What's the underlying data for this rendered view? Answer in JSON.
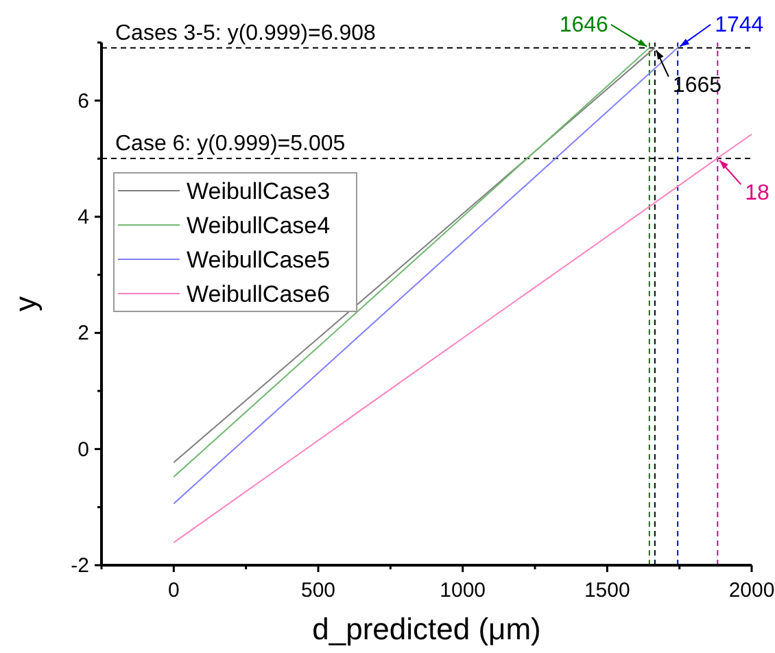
{
  "chart_data": {
    "type": "line",
    "xlabel": "d_predicted (μm)",
    "ylabel": "y",
    "xlim": [
      -250,
      2000
    ],
    "ylim": [
      -2,
      7
    ],
    "xticks": [
      {
        "value": -250,
        "label": null
      },
      0,
      {
        "value": 250,
        "label": null
      },
      500,
      {
        "value": 750,
        "label": null
      },
      1000,
      {
        "value": 1250,
        "label": null
      },
      1500,
      {
        "value": 1750,
        "label": null
      },
      2000
    ],
    "yticks": [
      -2,
      {
        "value": -1,
        "label": null
      },
      0,
      {
        "value": 1,
        "label": null
      },
      2,
      {
        "value": 3,
        "label": null
      },
      4,
      {
        "value": 5,
        "label": null
      },
      6,
      {
        "value": 7,
        "label": null
      }
    ],
    "legend": "top left",
    "grid": false,
    "line_style": "solid",
    "marker": "none",
    "series": [
      {
        "name": "WeibullCase3",
        "color": "#808080",
        "x": [
          0,
          500,
          1000,
          1500,
          1665
        ],
        "values": [
          -0.23,
          1.91,
          4.05,
          6.2,
          6.91
        ]
      },
      {
        "name": "WeibullCase4",
        "color": "#70b870",
        "x": [
          0,
          500,
          1000,
          1500,
          1646
        ],
        "values": [
          -0.48,
          1.76,
          4.0,
          6.25,
          6.91
        ]
      },
      {
        "name": "WeibullCase5",
        "color": "#8080ff",
        "x": [
          0,
          500,
          1000,
          1500,
          1744
        ],
        "values": [
          -0.94,
          1.31,
          3.56,
          5.81,
          6.91
        ]
      },
      {
        "name": "WeibullCase6",
        "color": "#ff80c0",
        "x": [
          0,
          500,
          1000,
          1500,
          1882,
          2000
        ],
        "values": [
          -1.61,
          0.15,
          1.91,
          3.66,
          5.01,
          5.42
        ]
      }
    ],
    "ref_lines": [
      {
        "axis": "y",
        "value": 6.908,
        "color": "#000000",
        "line_style": "dashed"
      },
      {
        "axis": "y",
        "value": 5.005,
        "color": "#000000",
        "line_style": "dashed"
      },
      {
        "axis": "x",
        "value": 1646,
        "color": "#008000",
        "line_style": "dashed"
      },
      {
        "axis": "x",
        "value": 1665,
        "color": "#000000",
        "line_style": "dashed"
      },
      {
        "axis": "x",
        "value": 1744,
        "color": "#0000ff",
        "line_style": "dashed"
      },
      {
        "axis": "x",
        "value": 1882,
        "color": "#e0007f",
        "line_style": "dashed"
      }
    ],
    "annotations": [
      "Cases 3-5: y(0.999)=6.908",
      "Case 6: y(0.999)=5.005",
      {
        "text": "1646",
        "x": 1646,
        "y": 6.908
      },
      {
        "text": "1744",
        "x": 1744,
        "y": 6.908
      },
      {
        "text": "1665",
        "x": 1665,
        "y": 6.908
      },
      {
        "text": "18",
        "x": 1882,
        "y": 5.005
      }
    ]
  }
}
